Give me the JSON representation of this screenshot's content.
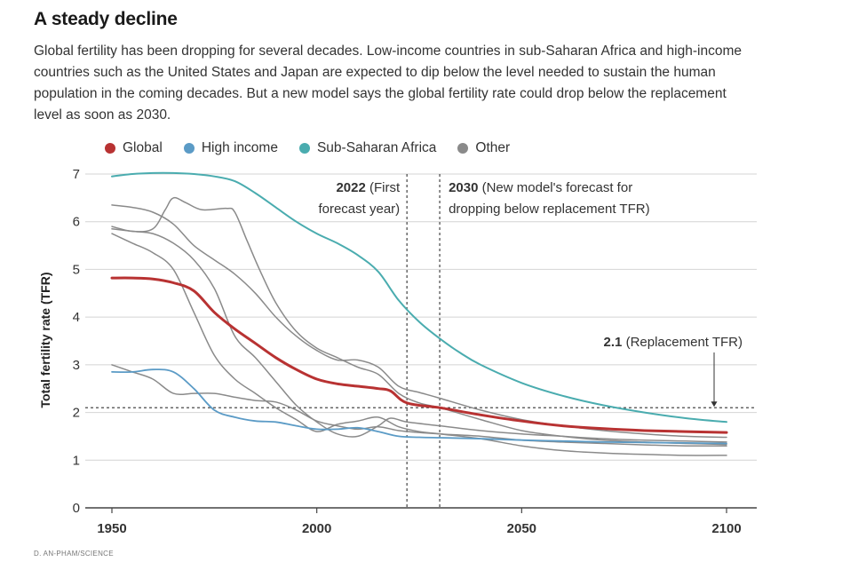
{
  "header": {
    "title": "A steady decline",
    "subtitle": "Global fertility has been dropping for several decades. Low-income countries in sub-Saharan Africa and high-income countries such as the United States and Japan are expected to dip below the level needed to sustain the human population in the coming decades. But a new model says the global fertility rate could drop below the replacement level as soon as 2030."
  },
  "legend": [
    {
      "label": "Global",
      "color": "#b83232"
    },
    {
      "label": "High income",
      "color": "#5b9bc6"
    },
    {
      "label": "Sub-Saharan Africa",
      "color": "#4aacaf"
    },
    {
      "label": "Other",
      "color": "#8a8a8a"
    }
  ],
  "credit": "D. AN-PHAM/SCIENCE",
  "chart_data": {
    "type": "line",
    "title": "A steady decline",
    "xlabel": "",
    "ylabel": "Total fertility rate (TFR)",
    "xlim": [
      1950,
      2100
    ],
    "ylim": [
      0,
      7
    ],
    "x_ticks": [
      1950,
      2000,
      2050,
      2100
    ],
    "y_ticks": [
      0,
      1,
      2,
      3,
      4,
      5,
      6,
      7
    ],
    "grid": "horizontal",
    "legend_position": "top",
    "reference_line": {
      "y": 2.1,
      "label_bold": "2.1",
      "label": "(Replacement TFR)"
    },
    "vertical_markers": [
      {
        "x": 2022,
        "label_bold": "2022",
        "label_line1": "(First",
        "label_line2": "forecast year)"
      },
      {
        "x": 2030,
        "label_bold": "2030",
        "label_line1": "(New model's forecast for",
        "label_line2": "dropping below replacement TFR)"
      }
    ],
    "series": [
      {
        "name": "Sub-Saharan Africa",
        "color": "#4aacaf",
        "width": 2,
        "points": [
          [
            1950,
            6.95
          ],
          [
            1955,
            7.0
          ],
          [
            1960,
            7.02
          ],
          [
            1965,
            7.02
          ],
          [
            1970,
            7.0
          ],
          [
            1975,
            6.95
          ],
          [
            1980,
            6.85
          ],
          [
            1985,
            6.6
          ],
          [
            1990,
            6.3
          ],
          [
            1995,
            6.0
          ],
          [
            2000,
            5.75
          ],
          [
            2005,
            5.55
          ],
          [
            2010,
            5.3
          ],
          [
            2015,
            4.95
          ],
          [
            2020,
            4.35
          ],
          [
            2025,
            3.9
          ],
          [
            2030,
            3.55
          ],
          [
            2035,
            3.25
          ],
          [
            2040,
            3.0
          ],
          [
            2050,
            2.62
          ],
          [
            2060,
            2.35
          ],
          [
            2070,
            2.15
          ],
          [
            2080,
            2.0
          ],
          [
            2090,
            1.88
          ],
          [
            2100,
            1.8
          ]
        ]
      },
      {
        "name": "Other",
        "color": "#8a8a8a",
        "width": 1.5,
        "points": [
          [
            1950,
            6.35
          ],
          [
            1955,
            6.3
          ],
          [
            1960,
            6.2
          ],
          [
            1965,
            5.95
          ],
          [
            1970,
            5.5
          ],
          [
            1975,
            5.2
          ],
          [
            1980,
            4.9
          ],
          [
            1985,
            4.5
          ],
          [
            1990,
            4.0
          ],
          [
            1995,
            3.6
          ],
          [
            2000,
            3.3
          ],
          [
            2005,
            3.1
          ],
          [
            2010,
            3.1
          ],
          [
            2015,
            2.95
          ],
          [
            2020,
            2.55
          ],
          [
            2025,
            2.42
          ],
          [
            2030,
            2.3
          ],
          [
            2040,
            2.05
          ],
          [
            2050,
            1.85
          ],
          [
            2060,
            1.72
          ],
          [
            2070,
            1.62
          ],
          [
            2080,
            1.55
          ],
          [
            2090,
            1.5
          ],
          [
            2100,
            1.48
          ]
        ]
      },
      {
        "name": "Other",
        "color": "#8a8a8a",
        "width": 1.5,
        "points": [
          [
            1950,
            5.9
          ],
          [
            1955,
            5.8
          ],
          [
            1960,
            5.85
          ],
          [
            1963,
            6.25
          ],
          [
            1965,
            6.5
          ],
          [
            1968,
            6.4
          ],
          [
            1972,
            6.25
          ],
          [
            1978,
            6.28
          ],
          [
            1980,
            6.2
          ],
          [
            1983,
            5.6
          ],
          [
            1986,
            5.0
          ],
          [
            1990,
            4.3
          ],
          [
            1995,
            3.7
          ],
          [
            2000,
            3.35
          ],
          [
            2005,
            3.15
          ],
          [
            2010,
            2.95
          ],
          [
            2015,
            2.8
          ],
          [
            2020,
            2.4
          ],
          [
            2025,
            2.2
          ],
          [
            2030,
            2.1
          ],
          [
            2040,
            1.85
          ],
          [
            2050,
            1.62
          ],
          [
            2060,
            1.5
          ],
          [
            2070,
            1.42
          ],
          [
            2080,
            1.38
          ],
          [
            2090,
            1.35
          ],
          [
            2100,
            1.33
          ]
        ]
      },
      {
        "name": "Other",
        "color": "#8a8a8a",
        "width": 1.5,
        "points": [
          [
            1950,
            5.85
          ],
          [
            1955,
            5.8
          ],
          [
            1960,
            5.75
          ],
          [
            1965,
            5.55
          ],
          [
            1970,
            5.2
          ],
          [
            1975,
            4.6
          ],
          [
            1980,
            3.6
          ],
          [
            1985,
            3.15
          ],
          [
            1990,
            2.65
          ],
          [
            1995,
            2.15
          ],
          [
            2000,
            1.8
          ],
          [
            2005,
            1.55
          ],
          [
            2010,
            1.5
          ],
          [
            2015,
            1.72
          ],
          [
            2018,
            1.88
          ],
          [
            2022,
            1.8
          ],
          [
            2030,
            1.72
          ],
          [
            2040,
            1.62
          ],
          [
            2050,
            1.55
          ],
          [
            2060,
            1.5
          ],
          [
            2070,
            1.45
          ],
          [
            2080,
            1.42
          ],
          [
            2090,
            1.4
          ],
          [
            2100,
            1.38
          ]
        ]
      },
      {
        "name": "Other",
        "color": "#8a8a8a",
        "width": 1.5,
        "points": [
          [
            1950,
            5.75
          ],
          [
            1955,
            5.55
          ],
          [
            1960,
            5.35
          ],
          [
            1965,
            5.0
          ],
          [
            1970,
            4.1
          ],
          [
            1975,
            3.2
          ],
          [
            1980,
            2.7
          ],
          [
            1985,
            2.4
          ],
          [
            1990,
            2.1
          ],
          [
            1995,
            1.85
          ],
          [
            2000,
            1.6
          ],
          [
            2005,
            1.75
          ],
          [
            2010,
            1.82
          ],
          [
            2015,
            1.9
          ],
          [
            2020,
            1.7
          ],
          [
            2025,
            1.6
          ],
          [
            2030,
            1.55
          ],
          [
            2040,
            1.45
          ],
          [
            2050,
            1.3
          ],
          [
            2060,
            1.2
          ],
          [
            2070,
            1.15
          ],
          [
            2080,
            1.12
          ],
          [
            2090,
            1.1
          ],
          [
            2100,
            1.1
          ]
        ]
      },
      {
        "name": "Other",
        "color": "#8a8a8a",
        "width": 1.5,
        "points": [
          [
            1950,
            3.0
          ],
          [
            1955,
            2.85
          ],
          [
            1960,
            2.7
          ],
          [
            1965,
            2.4
          ],
          [
            1970,
            2.4
          ],
          [
            1975,
            2.4
          ],
          [
            1980,
            2.32
          ],
          [
            1985,
            2.25
          ],
          [
            1990,
            2.22
          ],
          [
            1995,
            2.05
          ],
          [
            2000,
            1.82
          ],
          [
            2005,
            1.72
          ],
          [
            2010,
            1.65
          ],
          [
            2015,
            1.7
          ],
          [
            2020,
            1.62
          ],
          [
            2025,
            1.58
          ],
          [
            2030,
            1.55
          ],
          [
            2040,
            1.5
          ],
          [
            2050,
            1.42
          ],
          [
            2060,
            1.38
          ],
          [
            2070,
            1.35
          ],
          [
            2080,
            1.32
          ],
          [
            2090,
            1.3
          ],
          [
            2100,
            1.3
          ]
        ]
      },
      {
        "name": "High income",
        "color": "#5b9bc6",
        "width": 1.8,
        "points": [
          [
            1950,
            2.85
          ],
          [
            1955,
            2.85
          ],
          [
            1960,
            2.9
          ],
          [
            1965,
            2.85
          ],
          [
            1970,
            2.5
          ],
          [
            1975,
            2.05
          ],
          [
            1980,
            1.9
          ],
          [
            1985,
            1.82
          ],
          [
            1990,
            1.8
          ],
          [
            1995,
            1.72
          ],
          [
            2000,
            1.65
          ],
          [
            2005,
            1.65
          ],
          [
            2010,
            1.68
          ],
          [
            2015,
            1.6
          ],
          [
            2020,
            1.5
          ],
          [
            2025,
            1.48
          ],
          [
            2030,
            1.47
          ],
          [
            2040,
            1.45
          ],
          [
            2050,
            1.42
          ],
          [
            2060,
            1.4
          ],
          [
            2070,
            1.38
          ],
          [
            2080,
            1.37
          ],
          [
            2090,
            1.36
          ],
          [
            2100,
            1.35
          ]
        ]
      },
      {
        "name": "Global",
        "color": "#b83232",
        "width": 3,
        "points": [
          [
            1950,
            4.82
          ],
          [
            1955,
            4.82
          ],
          [
            1960,
            4.8
          ],
          [
            1965,
            4.72
          ],
          [
            1970,
            4.55
          ],
          [
            1975,
            4.1
          ],
          [
            1980,
            3.75
          ],
          [
            1985,
            3.45
          ],
          [
            1990,
            3.15
          ],
          [
            1995,
            2.9
          ],
          [
            2000,
            2.7
          ],
          [
            2005,
            2.6
          ],
          [
            2010,
            2.55
          ],
          [
            2015,
            2.5
          ],
          [
            2018,
            2.45
          ],
          [
            2022,
            2.2
          ],
          [
            2030,
            2.1
          ],
          [
            2040,
            1.95
          ],
          [
            2050,
            1.82
          ],
          [
            2060,
            1.72
          ],
          [
            2070,
            1.66
          ],
          [
            2080,
            1.62
          ],
          [
            2090,
            1.6
          ],
          [
            2100,
            1.58
          ]
        ]
      }
    ]
  }
}
